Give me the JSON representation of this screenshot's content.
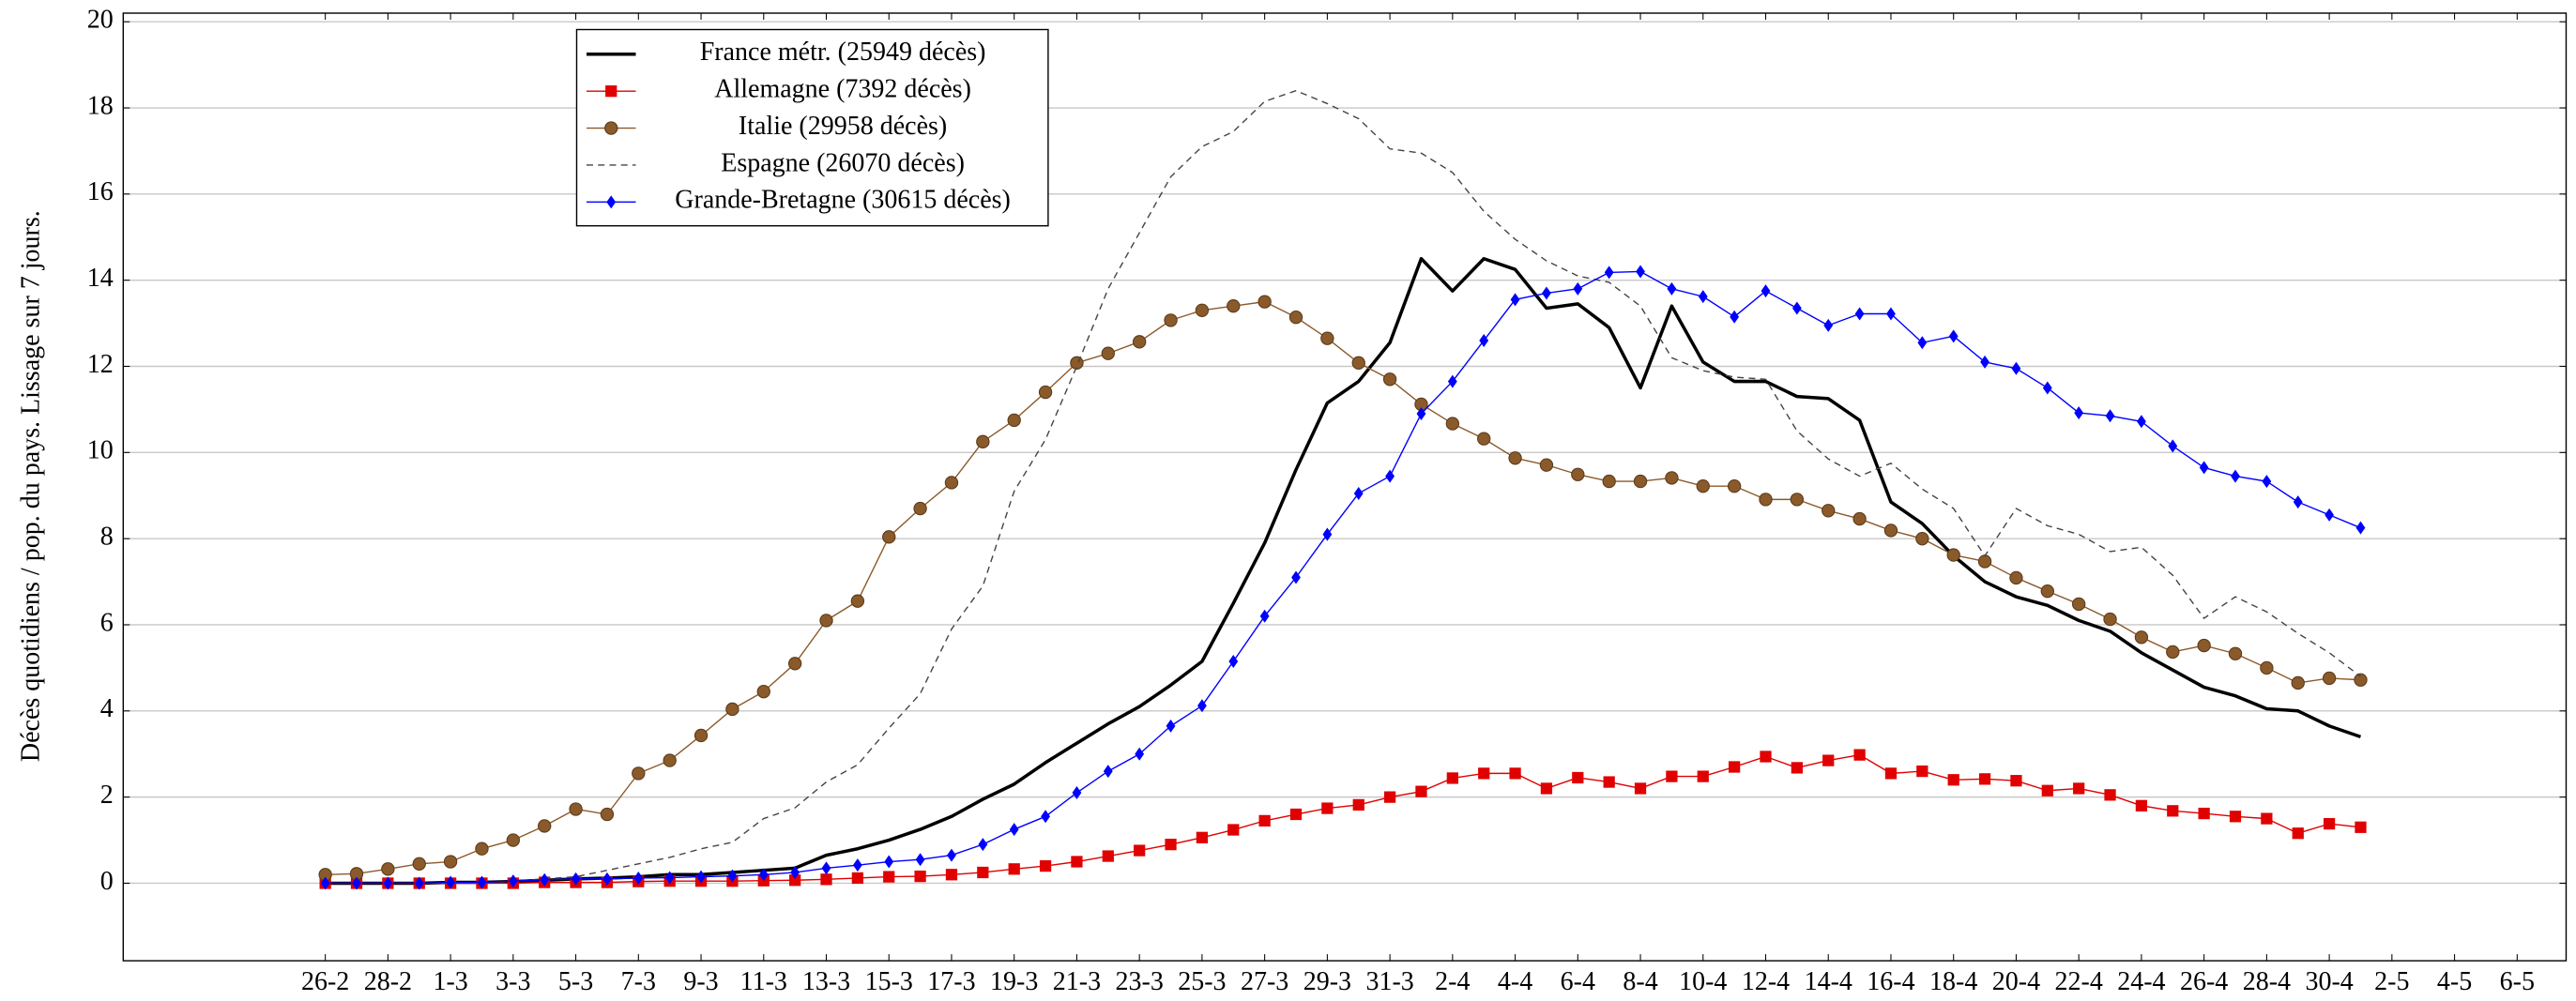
{
  "chart_data": {
    "type": "line",
    "ylabel": "Décès quotidiens / pop. du pays. Lissage sur 7 jours.",
    "categories": [
      "26-2",
      null,
      "28-2",
      null,
      "1-3",
      null,
      "3-3",
      null,
      "5-3",
      null,
      "7-3",
      null,
      "9-3",
      null,
      "11-3",
      null,
      "13-3",
      null,
      "15-3",
      null,
      "17-3",
      null,
      "19-3",
      null,
      "21-3",
      null,
      "23-3",
      null,
      "25-3",
      null,
      "27-3",
      null,
      "29-3",
      null,
      "31-3",
      null,
      "2-4",
      null,
      "4-4",
      null,
      "6-4",
      null,
      "8-4",
      null,
      "10-4",
      null,
      "12-4",
      null,
      "14-4",
      null,
      "16-4",
      null,
      "18-4",
      null,
      "20-4",
      null,
      "22-4",
      null,
      "24-4",
      null,
      "26-4",
      null,
      "28-4",
      null,
      "30-4",
      null,
      "2-5",
      null,
      "4-5",
      null,
      "6-5"
    ],
    "series": [
      {
        "name": "France métr. (25949 décès)",
        "color": "#000000",
        "line_style": "solid",
        "marker": "none",
        "values": [
          0,
          0,
          0,
          0,
          0.02,
          0.02,
          0.04,
          0.07,
          0.1,
          0.12,
          0.15,
          0.2,
          0.2,
          0.25,
          0.3,
          0.35,
          0.65,
          0.8,
          1.0,
          1.25,
          1.55,
          1.95,
          2.3,
          2.8,
          3.25,
          3.7,
          4.1,
          4.6,
          5.15,
          6.5,
          7.9,
          9.6,
          11.15,
          11.65,
          12.55,
          14.5,
          13.75,
          14.5,
          14.25,
          13.35,
          13.45,
          12.9,
          11.5,
          13.4,
          12.1,
          11.65,
          11.65,
          11.3,
          11.25,
          10.75,
          8.85,
          8.35,
          7.6,
          7.0,
          6.65,
          6.45,
          6.1,
          5.85,
          5.35,
          4.95,
          4.55,
          4.35,
          4.05,
          4.0,
          3.65,
          3.4,
          null,
          null,
          null,
          null,
          null
        ]
      },
      {
        "name": "Allemagne (7392 décès)",
        "color": "#e00000",
        "line_style": "solid",
        "marker": "square",
        "values": [
          0,
          0,
          0,
          0,
          0,
          0,
          0,
          0.02,
          0.02,
          0.02,
          0.04,
          0.05,
          0.05,
          0.05,
          0.06,
          0.07,
          0.09,
          0.12,
          0.15,
          0.16,
          0.2,
          0.25,
          0.33,
          0.4,
          0.5,
          0.63,
          0.76,
          0.9,
          1.06,
          1.24,
          1.45,
          1.6,
          1.74,
          1.82,
          2.0,
          2.13,
          2.44,
          2.55,
          2.55,
          2.2,
          2.45,
          2.35,
          2.2,
          2.48,
          2.48,
          2.7,
          2.94,
          2.68,
          2.85,
          2.98,
          2.55,
          2.6,
          2.4,
          2.42,
          2.38,
          2.15,
          2.2,
          2.05,
          1.8,
          1.68,
          1.62,
          1.55,
          1.5,
          1.16,
          1.38,
          1.3,
          null,
          null,
          null,
          null,
          null
        ]
      },
      {
        "name": "Italie (29958 décès)",
        "color": "#8b5a2b",
        "line_style": "solid",
        "marker": "circle",
        "values": [
          0.2,
          0.22,
          0.33,
          0.45,
          0.5,
          0.8,
          1.0,
          1.33,
          1.72,
          1.6,
          2.55,
          2.85,
          3.43,
          4.04,
          4.45,
          5.1,
          6.1,
          6.55,
          8.04,
          8.7,
          9.3,
          10.25,
          10.75,
          11.4,
          12.08,
          12.3,
          12.57,
          13.07,
          13.3,
          13.4,
          13.5,
          13.14,
          12.65,
          12.08,
          11.7,
          11.12,
          10.67,
          10.32,
          9.87,
          9.71,
          9.49,
          9.33,
          9.33,
          9.41,
          9.22,
          9.22,
          8.91,
          8.91,
          8.65,
          8.46,
          8.19,
          8.0,
          7.62,
          7.47,
          7.09,
          6.78,
          6.48,
          6.13,
          5.71,
          5.37,
          5.52,
          5.33,
          5.0,
          4.65,
          4.76,
          4.72,
          null,
          null,
          null,
          null,
          null
        ]
      },
      {
        "name": "Espagne (26070 décès)",
        "color": "#444444",
        "line_style": "dashed",
        "marker": "none",
        "values": [
          0,
          0,
          0,
          0,
          0,
          0,
          0.05,
          0.1,
          0.15,
          0.3,
          0.45,
          0.6,
          0.8,
          0.95,
          1.5,
          1.75,
          2.35,
          2.75,
          3.6,
          4.4,
          5.9,
          6.9,
          9.1,
          10.3,
          12.0,
          13.8,
          15.1,
          16.4,
          17.1,
          17.45,
          18.15,
          18.4,
          18.1,
          17.75,
          17.05,
          16.95,
          16.5,
          15.6,
          14.95,
          14.45,
          14.1,
          13.95,
          13.4,
          12.2,
          11.9,
          11.75,
          11.7,
          10.5,
          9.85,
          9.45,
          9.75,
          9.15,
          8.7,
          7.6,
          8.7,
          8.3,
          8.1,
          7.7,
          7.8,
          7.15,
          6.15,
          6.65,
          6.3,
          5.8,
          5.35,
          4.8,
          null,
          null,
          null,
          null,
          null
        ]
      },
      {
        "name": "Grande-Bretagne (30615 décès)",
        "color": "#0000ff",
        "line_style": "solid",
        "marker": "diamond",
        "values": [
          0,
          0,
          0,
          0,
          0.02,
          0.02,
          0.05,
          0.08,
          0.1,
          0.1,
          0.12,
          0.13,
          0.15,
          0.17,
          0.2,
          0.25,
          0.35,
          0.42,
          0.5,
          0.55,
          0.65,
          0.9,
          1.25,
          1.55,
          2.1,
          2.6,
          3.0,
          3.65,
          4.12,
          5.15,
          6.2,
          7.1,
          8.1,
          9.05,
          9.45,
          10.9,
          11.65,
          12.6,
          13.55,
          13.7,
          13.8,
          14.18,
          14.2,
          13.8,
          13.62,
          13.15,
          13.75,
          13.35,
          12.95,
          13.22,
          13.22,
          12.55,
          12.7,
          12.1,
          11.95,
          11.5,
          10.92,
          10.85,
          10.72,
          10.15,
          9.65,
          9.45,
          9.33,
          8.85,
          8.55,
          8.25,
          null,
          null,
          null,
          null,
          null
        ]
      }
    ],
    "ylim": [
      -1.8,
      20.2
    ],
    "yticks": [
      0,
      2,
      4,
      6,
      8,
      10,
      12,
      14,
      16,
      18,
      20
    ],
    "grid": true,
    "legend": "upper left"
  }
}
